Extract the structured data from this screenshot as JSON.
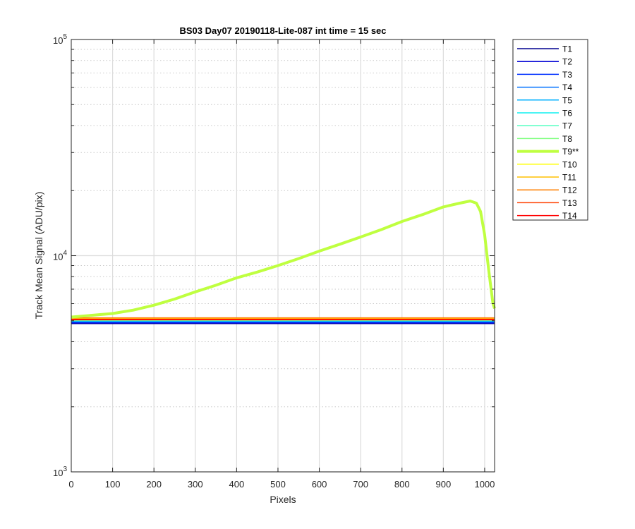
{
  "chart_data": {
    "type": "line",
    "title": "BS03 Day07 20190118-Lite-087 int time = 15 sec",
    "xlabel": "Pixels",
    "ylabel": "Track Mean Signal (ADU/pix)",
    "xlim": [
      0,
      1024
    ],
    "ylim": [
      1000,
      100000
    ],
    "yscale": "log",
    "grid": true,
    "minor_grid": true,
    "legend_position": "outside-right-top",
    "x_ticks": [
      0,
      100,
      200,
      300,
      400,
      500,
      600,
      700,
      800,
      900,
      1000
    ],
    "x_tick_labels": [
      "0",
      "100",
      "200",
      "300",
      "400",
      "500",
      "600",
      "700",
      "800",
      "900",
      "1000"
    ],
    "y_ticks": [
      1000,
      10000,
      100000
    ],
    "y_tick_labels": [
      {
        "base": "10",
        "exp": "3"
      },
      {
        "base": "10",
        "exp": "4"
      },
      {
        "base": "10",
        "exp": "5"
      }
    ],
    "series": [
      {
        "name": "T1",
        "color": "#00008f",
        "width": 1.5,
        "x": [
          0,
          1024
        ],
        "y": [
          4850,
          4850
        ]
      },
      {
        "name": "T2",
        "color": "#0000d4",
        "width": 1.5,
        "x": [
          0,
          1024
        ],
        "y": [
          4880,
          4880
        ]
      },
      {
        "name": "T3",
        "color": "#0030ff",
        "width": 1.5,
        "x": [
          0,
          1024
        ],
        "y": [
          4920,
          4920
        ]
      },
      {
        "name": "T4",
        "color": "#0070ff",
        "width": 1.5,
        "x": [
          0,
          1024
        ],
        "y": [
          4950,
          4950
        ]
      },
      {
        "name": "T5",
        "color": "#00b0ff",
        "width": 1.5,
        "x": [
          0,
          1024
        ],
        "y": [
          4980,
          4980
        ]
      },
      {
        "name": "T6",
        "color": "#10f0f0",
        "width": 1.5,
        "x": [
          0,
          1024
        ],
        "y": [
          5000,
          5000
        ]
      },
      {
        "name": "T7",
        "color": "#50ffc0",
        "width": 1.5,
        "x": [
          0,
          1024
        ],
        "y": [
          5020,
          5020
        ]
      },
      {
        "name": "T8",
        "color": "#80ff80",
        "width": 1.5,
        "x": [
          0,
          1024
        ],
        "y": [
          5040,
          5040
        ]
      },
      {
        "name": "T9**",
        "color": "#bfff40",
        "width": 4,
        "x": [
          0,
          50,
          100,
          150,
          200,
          250,
          300,
          350,
          400,
          450,
          500,
          550,
          600,
          650,
          700,
          750,
          800,
          850,
          900,
          940,
          965,
          980,
          990,
          1000,
          1010,
          1020,
          1024
        ],
        "y": [
          5200,
          5300,
          5400,
          5600,
          5900,
          6300,
          6800,
          7300,
          7900,
          8400,
          9000,
          9700,
          10500,
          11300,
          12200,
          13200,
          14400,
          15500,
          16800,
          17500,
          17900,
          17500,
          16000,
          12500,
          8500,
          6000,
          5700
        ]
      },
      {
        "name": "T10",
        "color": "#ffff00",
        "width": 1.5,
        "x": [
          0,
          1024
        ],
        "y": [
          5070,
          5070
        ]
      },
      {
        "name": "T11",
        "color": "#ffc000",
        "width": 1.5,
        "x": [
          0,
          1024
        ],
        "y": [
          5110,
          5110
        ]
      },
      {
        "name": "T12",
        "color": "#ff8000",
        "width": 1.5,
        "x": [
          0,
          1024
        ],
        "y": [
          5160,
          5160
        ]
      },
      {
        "name": "T13",
        "color": "#ff4000",
        "width": 1.5,
        "x": [
          0,
          1024
        ],
        "y": [
          5080,
          5080
        ]
      },
      {
        "name": "T14",
        "color": "#ff0000",
        "width": 1.5,
        "x": [
          0,
          1024
        ],
        "y": [
          5050,
          5050
        ]
      }
    ]
  }
}
